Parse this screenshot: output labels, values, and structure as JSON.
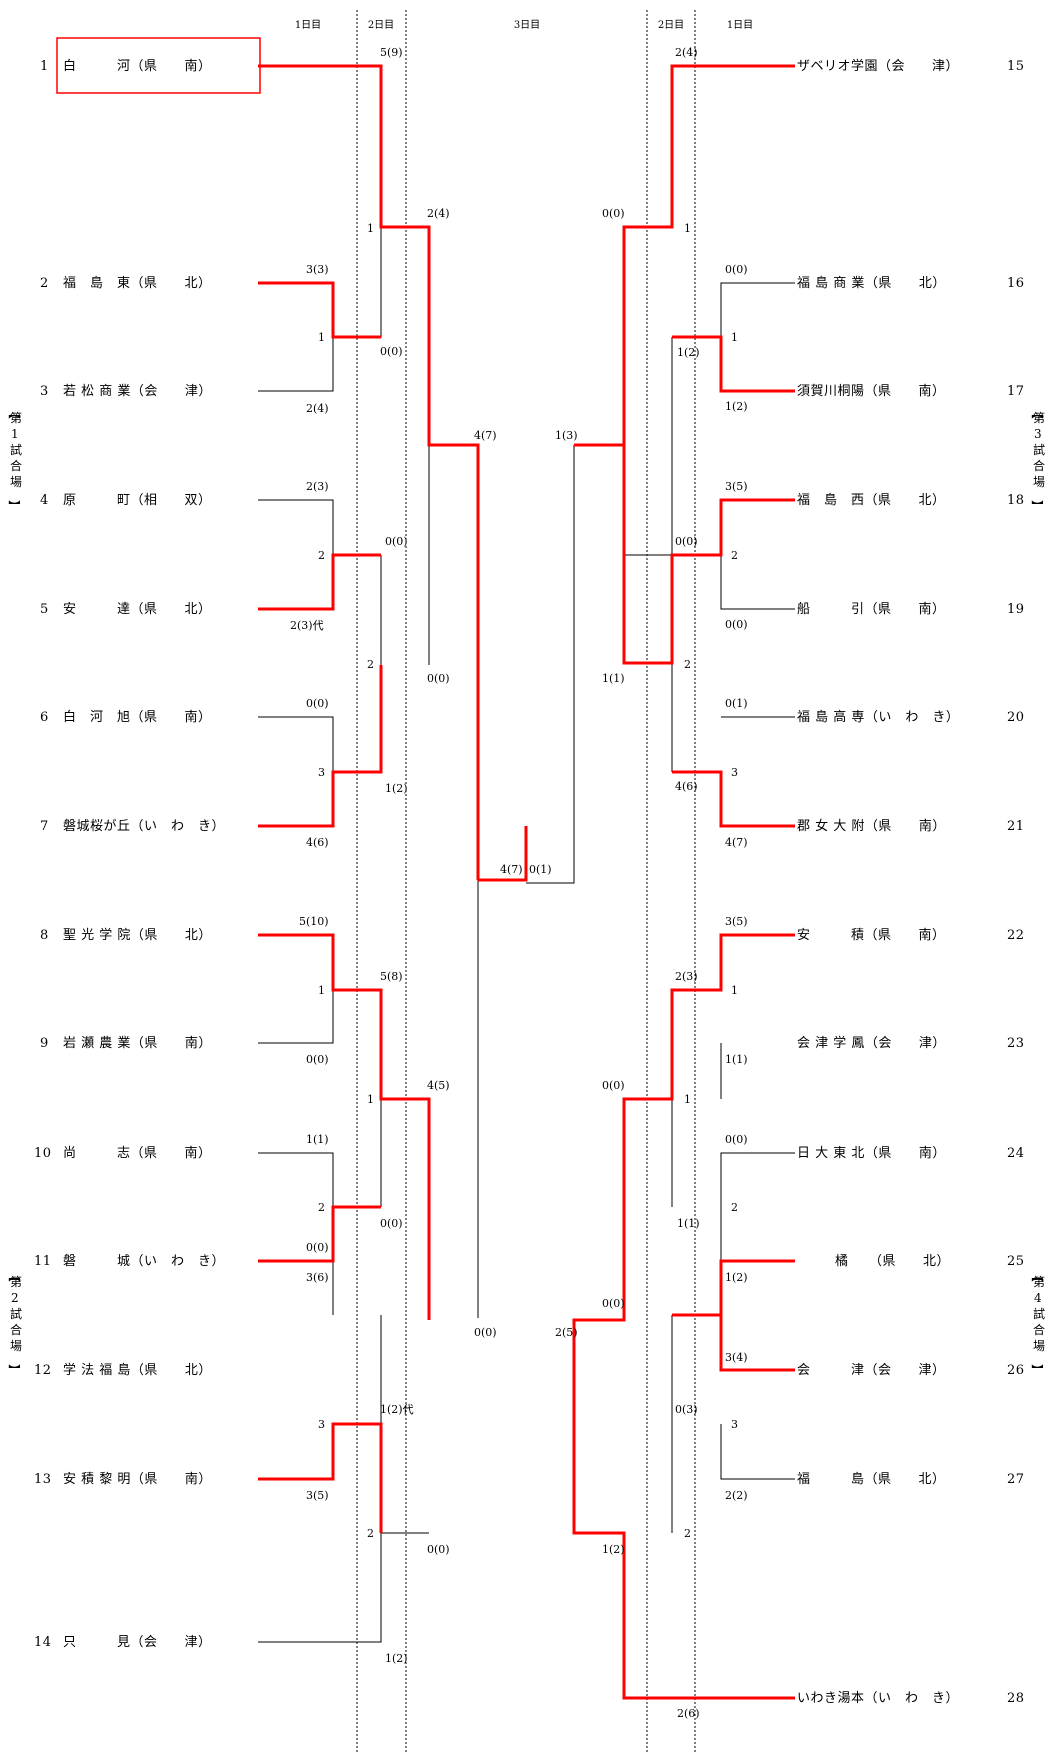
{
  "day_labels": [
    "1日目",
    "2日目",
    "3日目",
    "2日目",
    "1日目"
  ],
  "venues": {
    "left_top": [
      "【",
      "第",
      "1",
      "試",
      "合",
      "場",
      "】"
    ],
    "left_bottom": [
      "【",
      "第",
      "2",
      "試",
      "合",
      "場",
      "】"
    ],
    "right_top": [
      "【",
      "第",
      "3",
      "試",
      "合",
      "場",
      "】"
    ],
    "right_bottom": [
      "【",
      "第",
      "4",
      "試",
      "合",
      "場",
      "】"
    ]
  },
  "teams_left": [
    {
      "no": "1",
      "label": "白　　　河（県　　南）"
    },
    {
      "no": "2",
      "label": "福　島　東（県　　北）"
    },
    {
      "no": "3",
      "label": "若 松 商 業（会　　津）"
    },
    {
      "no": "4",
      "label": "原　　　町（相　　双）"
    },
    {
      "no": "5",
      "label": "安　　　達（県　　北）"
    },
    {
      "no": "6",
      "label": "白　河　旭（県　　南）"
    },
    {
      "no": "7",
      "label": "磐城桜が丘（い　わ　き）"
    },
    {
      "no": "8",
      "label": "聖 光 学 院（県　　北）"
    },
    {
      "no": "9",
      "label": "岩 瀬 農 業（県　　南）"
    },
    {
      "no": "10",
      "label": "尚　　　志（県　　南）"
    },
    {
      "no": "11",
      "label": "磐　　　城（い　わ　き）"
    },
    {
      "no": "12",
      "label": "学 法 福 島（県　　北）"
    },
    {
      "no": "13",
      "label": "安 積 黎 明（県　　南）"
    },
    {
      "no": "14",
      "label": "只　　　見（会　　津）"
    }
  ],
  "teams_right": [
    {
      "no": "15",
      "label": "ザベリオ学園（会　　津）"
    },
    {
      "no": "16",
      "label": "福 島 商 業（県　　北）"
    },
    {
      "no": "17",
      "label": "須賀川桐陽（県　　南）"
    },
    {
      "no": "18",
      "label": "福　島　西（県　　北）"
    },
    {
      "no": "19",
      "label": "船　　　引（県　　南）"
    },
    {
      "no": "20",
      "label": "福 島 高 専（い　わ　き）"
    },
    {
      "no": "21",
      "label": "郡 女 大 附（県　　南）"
    },
    {
      "no": "22",
      "label": "安　　　積（県　　南）"
    },
    {
      "no": "23",
      "label": "会 津 学 鳳（会　　津）"
    },
    {
      "no": "24",
      "label": "日 大 東 北（県　　南）"
    },
    {
      "no": "25",
      "label": "橘　　（県　　北）"
    },
    {
      "no": "26",
      "label": "会　　　津（会　　津）"
    },
    {
      "no": "27",
      "label": "福　　　島（県　　北）"
    },
    {
      "no": "28",
      "label": "いわき湯本（い　わ　き）"
    }
  ],
  "scores": [
    "3(3)",
    "1",
    "2(4)",
    "0(0)",
    "5(9)",
    "1",
    "2(4)",
    "2(3)",
    "2",
    "2(3)代",
    "0(0)",
    "3",
    "4(6)",
    "0(0)",
    "1(2)",
    "2",
    "0(0)",
    "4(7)",
    "5(10)",
    "1",
    "0(0)",
    "5(8)",
    "1(1)",
    "2",
    "3(6)",
    "0(0)",
    "1",
    "4(5)",
    "0(0)",
    "3",
    "3(5)",
    "1(2)代",
    "0(0)",
    "2",
    "1(2)",
    "0(0)",
    "4(7)",
    "0(1)",
    "2(4)",
    "0(0)",
    "1",
    "1(2)",
    "0(0)",
    "1",
    "1(2)",
    "3(5)",
    "2",
    "0(0)",
    "0(0)",
    "0(1)",
    "3",
    "4(7)",
    "4(6)",
    "1(1)",
    "2",
    "1(3)",
    "3(5)",
    "1",
    "1(1)",
    "2(3)",
    "0(0)",
    "1",
    "0(0)",
    "2",
    "1(2)",
    "1(1)",
    "3(4)",
    "3",
    "2(2)",
    "0(3)",
    "0(0)",
    "2",
    "1(2)",
    "2(6)",
    "2(5)"
  ],
  "colors": {
    "winner": "#ff0000",
    "line": "#000000",
    "box": "#ff0000"
  }
}
